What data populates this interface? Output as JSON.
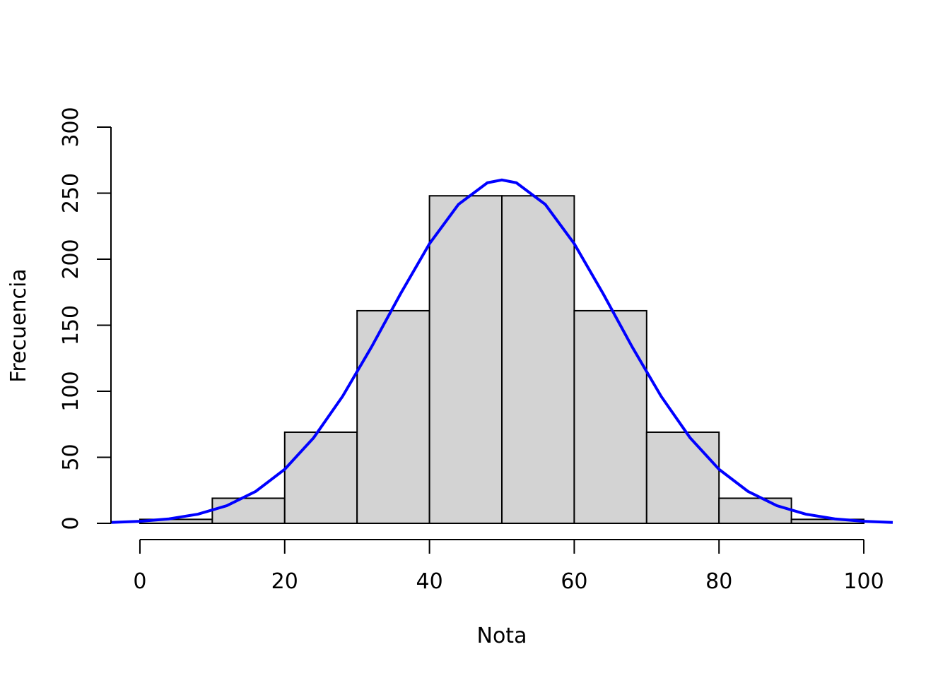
{
  "chart_data": {
    "type": "histogram",
    "xlabel": "Nota",
    "ylabel": "Frecuencia",
    "bins": [
      0,
      10,
      20,
      30,
      40,
      50,
      60,
      70,
      80,
      90,
      100
    ],
    "counts": [
      3,
      19,
      69,
      161,
      248,
      248,
      161,
      69,
      19,
      3
    ],
    "color": "#d3d3d3",
    "curve": {
      "color": "#0000ff",
      "x": [
        -4,
        0,
        4,
        8,
        12,
        16,
        20,
        24,
        28,
        32,
        36,
        40,
        44,
        48,
        50,
        52,
        56,
        60,
        64,
        68,
        72,
        76,
        80,
        84,
        88,
        92,
        96,
        100,
        104
      ],
      "y": [
        0.65,
        1.53,
        3.36,
        6.93,
        13.37,
        24.2,
        40.9,
        64.8,
        96.2,
        133.6,
        173.8,
        211.7,
        241.5,
        257.9,
        260,
        257.9,
        241.5,
        211.7,
        173.8,
        133.6,
        96.2,
        64.8,
        40.9,
        24.2,
        13.37,
        6.93,
        3.36,
        1.53,
        0.65
      ]
    },
    "xlim": [
      -4,
      104
    ],
    "ylim": [
      0,
      300
    ],
    "xticks": [
      0,
      20,
      40,
      60,
      80,
      100
    ],
    "yticks": [
      0,
      50,
      100,
      150,
      200,
      250,
      300
    ]
  }
}
